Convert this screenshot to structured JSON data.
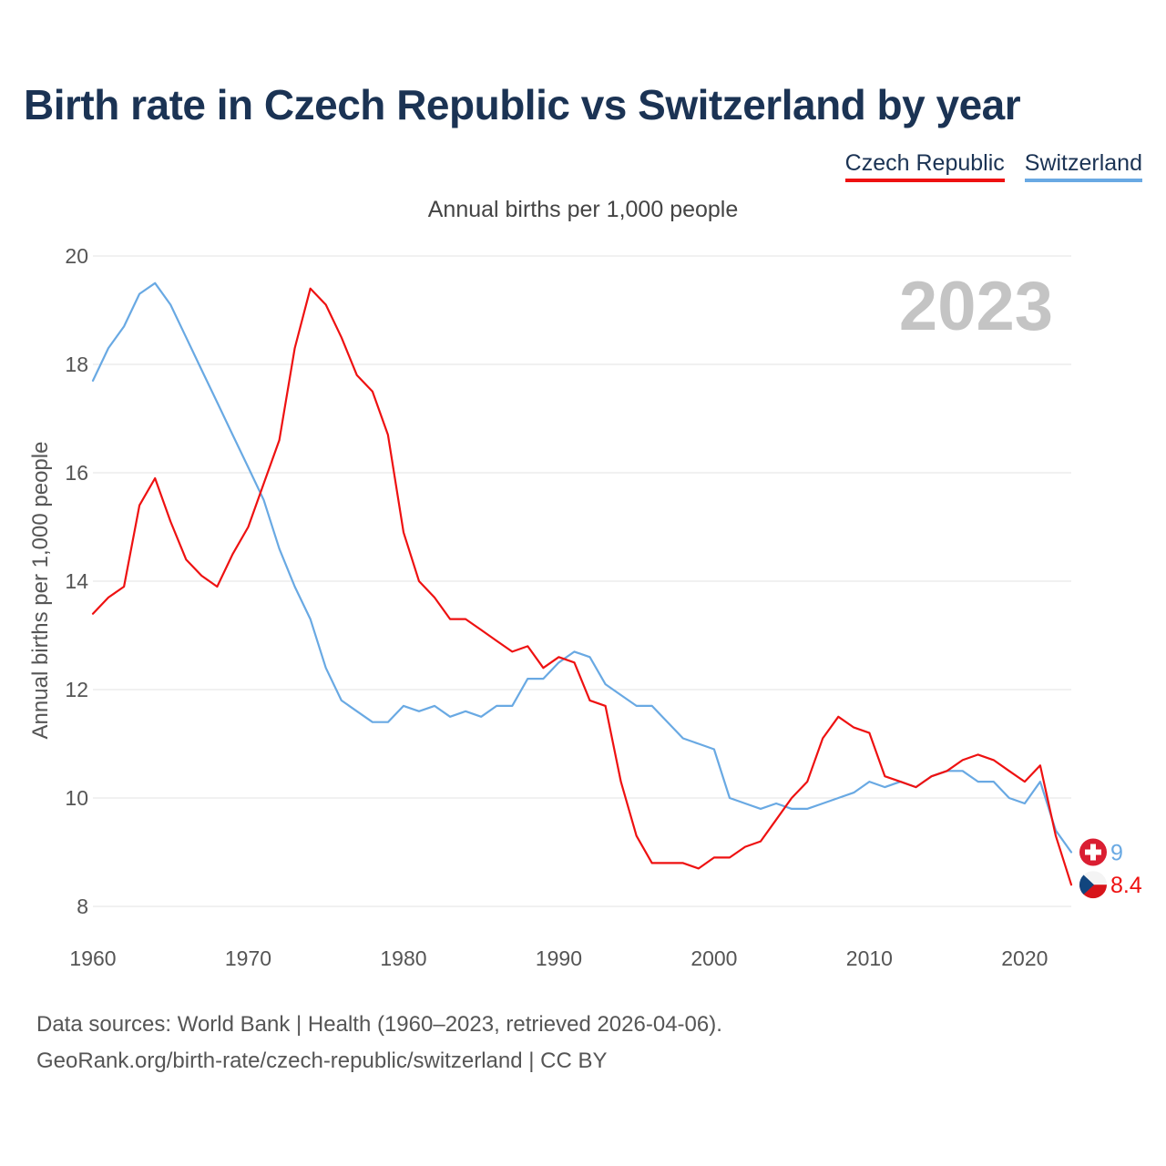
{
  "title": "Birth rate in Czech Republic vs Switzerland by year",
  "subtitle": "Annual births per 1,000 people",
  "footer": {
    "line1": "Data sources: World Bank | Health (1960–2023, retrieved 2026-04-06).",
    "line2": "GeoRank.org/birth-rate/czech-republic/switzerland | CC BY"
  },
  "chart_data": {
    "type": "line",
    "title": "Birth rate in Czech Republic vs Switzerland by year",
    "ylabel": "Annual births per 1,000 people",
    "xlabel": "",
    "xlim": [
      1960,
      2023
    ],
    "ylim": [
      8,
      20
    ],
    "yticks": [
      8,
      10,
      12,
      14,
      16,
      18,
      20
    ],
    "xticks": [
      1960,
      1970,
      1980,
      1990,
      2000,
      2010,
      2020
    ],
    "year_stamp": "2023",
    "grid": true,
    "legend_position": "top-right",
    "x": [
      1960,
      1961,
      1962,
      1963,
      1964,
      1965,
      1966,
      1967,
      1968,
      1969,
      1970,
      1971,
      1972,
      1973,
      1974,
      1975,
      1976,
      1977,
      1978,
      1979,
      1980,
      1981,
      1982,
      1983,
      1984,
      1985,
      1986,
      1987,
      1988,
      1989,
      1990,
      1991,
      1992,
      1993,
      1994,
      1995,
      1996,
      1997,
      1998,
      1999,
      2000,
      2001,
      2002,
      2003,
      2004,
      2005,
      2006,
      2007,
      2008,
      2009,
      2010,
      2011,
      2012,
      2013,
      2014,
      2015,
      2016,
      2017,
      2018,
      2019,
      2020,
      2021,
      2022,
      2023
    ],
    "series": [
      {
        "name": "Czech Republic",
        "color": "#ee1111",
        "end_label": "8.4",
        "flag": "czech-flag",
        "values": [
          13.4,
          13.7,
          13.9,
          15.4,
          15.9,
          15.1,
          14.4,
          14.1,
          13.9,
          14.5,
          15.0,
          15.8,
          16.6,
          18.3,
          19.4,
          19.1,
          18.5,
          17.8,
          17.5,
          16.7,
          14.9,
          14.0,
          13.7,
          13.3,
          13.3,
          13.1,
          12.9,
          12.7,
          12.8,
          12.4,
          12.6,
          12.5,
          11.8,
          11.7,
          10.3,
          9.3,
          8.8,
          8.8,
          8.8,
          8.7,
          8.9,
          8.9,
          9.1,
          9.2,
          9.6,
          10.0,
          10.3,
          11.1,
          11.5,
          11.3,
          11.2,
          10.4,
          10.3,
          10.2,
          10.4,
          10.5,
          10.7,
          10.8,
          10.7,
          10.5,
          10.3,
          10.6,
          9.3,
          8.4
        ]
      },
      {
        "name": "Switzerland",
        "color": "#69a9e3",
        "end_label": "9",
        "flag": "swiss-flag",
        "values": [
          17.7,
          18.3,
          18.7,
          19.3,
          19.5,
          19.1,
          18.5,
          17.9,
          17.3,
          16.7,
          16.1,
          15.5,
          14.6,
          13.9,
          13.3,
          12.4,
          11.8,
          11.6,
          11.4,
          11.4,
          11.7,
          11.6,
          11.7,
          11.5,
          11.6,
          11.5,
          11.7,
          11.7,
          12.2,
          12.2,
          12.5,
          12.7,
          12.6,
          12.1,
          11.9,
          11.7,
          11.7,
          11.4,
          11.1,
          11.0,
          10.9,
          10.0,
          9.9,
          9.8,
          9.9,
          9.8,
          9.8,
          9.9,
          10.0,
          10.1,
          10.3,
          10.2,
          10.3,
          10.2,
          10.4,
          10.5,
          10.5,
          10.3,
          10.3,
          10.0,
          9.9,
          10.3,
          9.4,
          9.0
        ]
      }
    ]
  }
}
